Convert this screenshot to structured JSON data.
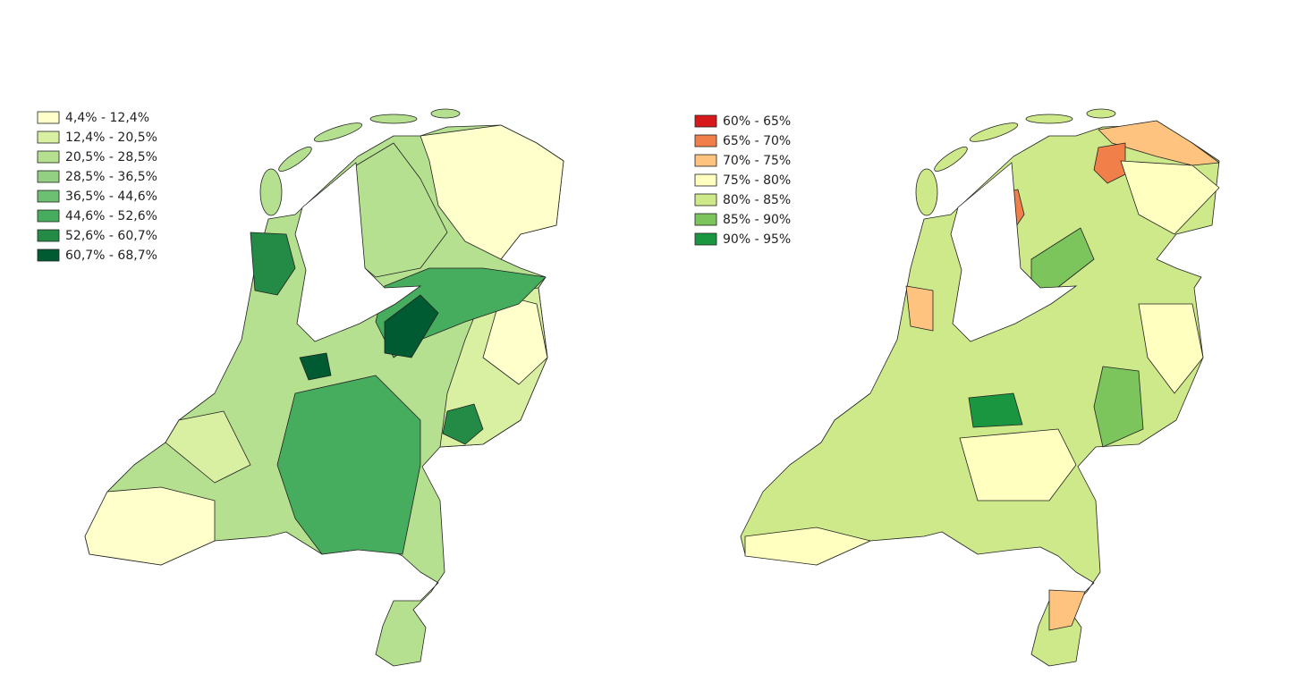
{
  "maps": [
    {
      "legend": [
        {
          "label": "4,4% - 12,4%",
          "color": "#ffffcc"
        },
        {
          "label": "12,4% - 20,5%",
          "color": "#d9f0a3"
        },
        {
          "label": "20,5% - 28,5%",
          "color": "#b5e08f"
        },
        {
          "label": "28,5% - 36,5%",
          "color": "#93d084"
        },
        {
          "label": "36,5% - 44,6%",
          "color": "#6dbf72"
        },
        {
          "label": "44,6% - 52,6%",
          "color": "#46ad5e"
        },
        {
          "label": "52,6% - 60,7%",
          "color": "#238b45"
        },
        {
          "label": "60,7% - 68,7%",
          "color": "#005a32"
        }
      ]
    },
    {
      "legend": [
        {
          "label": "60% - 65%",
          "color": "#d7191c"
        },
        {
          "label": "65% - 70%",
          "color": "#f07f4a"
        },
        {
          "label": "70% - 75%",
          "color": "#fdc37f"
        },
        {
          "label": "75% - 80%",
          "color": "#ffffbf"
        },
        {
          "label": "80% - 85%",
          "color": "#cde98a"
        },
        {
          "label": "85% - 90%",
          "color": "#7cc45c"
        },
        {
          "label": "90% - 95%",
          "color": "#1a9641"
        }
      ]
    }
  ]
}
